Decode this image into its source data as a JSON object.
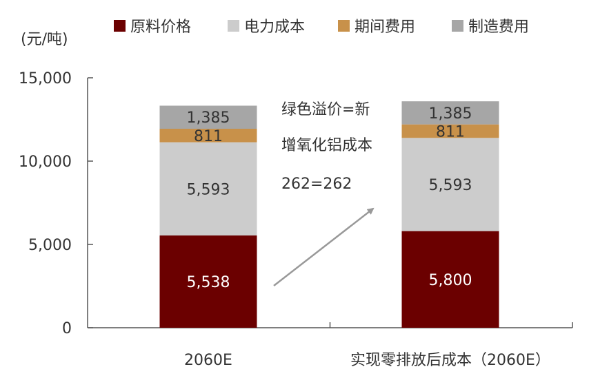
{
  "chart_data": {
    "type": "bar",
    "stacked": true,
    "unit_label": "(元/吨)",
    "categories": [
      "2060E",
      "实现零排放后成本（2060E）"
    ],
    "series": [
      {
        "name": "原料价格",
        "color": "#6b0000",
        "values": [
          5538,
          5800
        ],
        "labels": [
          "5,538",
          "5,800"
        ],
        "label_color": "#ffffff"
      },
      {
        "name": "电力成本",
        "color": "#cccccc",
        "values": [
          5593,
          5593
        ],
        "labels": [
          "5,593",
          "5,593"
        ],
        "label_color": "#333333"
      },
      {
        "name": "期间费用",
        "color": "#c8914a",
        "values": [
          811,
          811
        ],
        "labels": [
          "811",
          "811"
        ],
        "label_color": "#333333"
      },
      {
        "name": "制造费用",
        "color": "#a6a6a6",
        "values": [
          1385,
          1385
        ],
        "labels": [
          "1,385",
          "1,385"
        ],
        "label_color": "#333333"
      }
    ],
    "ylim": [
      0,
      15000
    ],
    "yticks": [
      0,
      5000,
      10000,
      15000
    ],
    "ytick_labels": [
      "0",
      "5,000",
      "10,000",
      "15,000"
    ],
    "legend_position": "top",
    "grid": false,
    "annotation": {
      "lines": [
        "绿色溢价=新",
        "增氧化铝成本",
        "262=262"
      ],
      "arrow": "from first bar toward second bar"
    }
  }
}
